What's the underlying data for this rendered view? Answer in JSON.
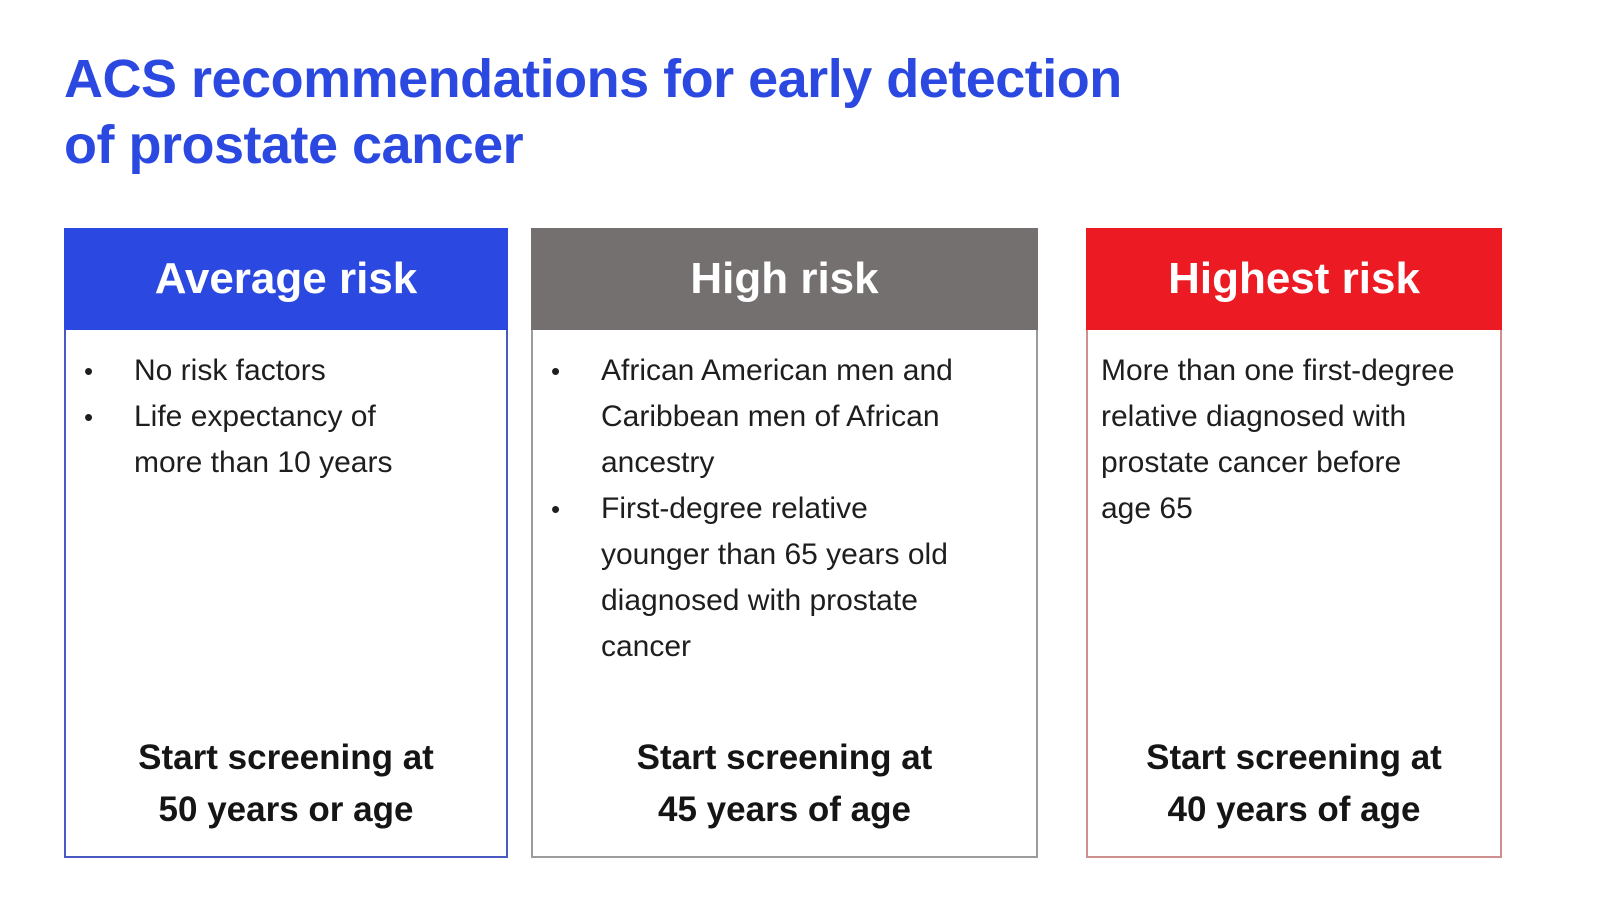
{
  "slide": {
    "title_line1": "ACS recommendations for early detection",
    "title_line2": "of prostate cancer",
    "title_color": "#2b49e1",
    "background": "#ffffff",
    "bullet_char": "•"
  },
  "cards": [
    {
      "header": "Average risk",
      "header_bg": "#2b49e1",
      "header_text_color": "#ffffff",
      "border_color": "#4a5ac2",
      "bullets": [
        "No risk factors",
        "Life expectancy of more than 10 years"
      ],
      "footer_line1": "Start screening at",
      "footer_line2": "50 years or age"
    },
    {
      "header": "High risk",
      "header_bg": "#757070",
      "header_text_color": "#ffffff",
      "border_color": "#9c9c9c",
      "bullets": [
        "African American men and Caribbean men of African ancestry",
        "First-degree relative younger than 65 years old diagnosed with prostate cancer"
      ],
      "footer_line1": "Start screening at",
      "footer_line2": "45 years of age"
    },
    {
      "header": "Highest risk",
      "header_bg": "#ec1b23",
      "header_text_color": "#ffffff",
      "border_color": "#d08f8f",
      "paragraph": "More than one first-degree relative diagnosed with prostate cancer before age 65",
      "footer_line1": "Start screening at",
      "footer_line2": "40 years of age"
    }
  ]
}
